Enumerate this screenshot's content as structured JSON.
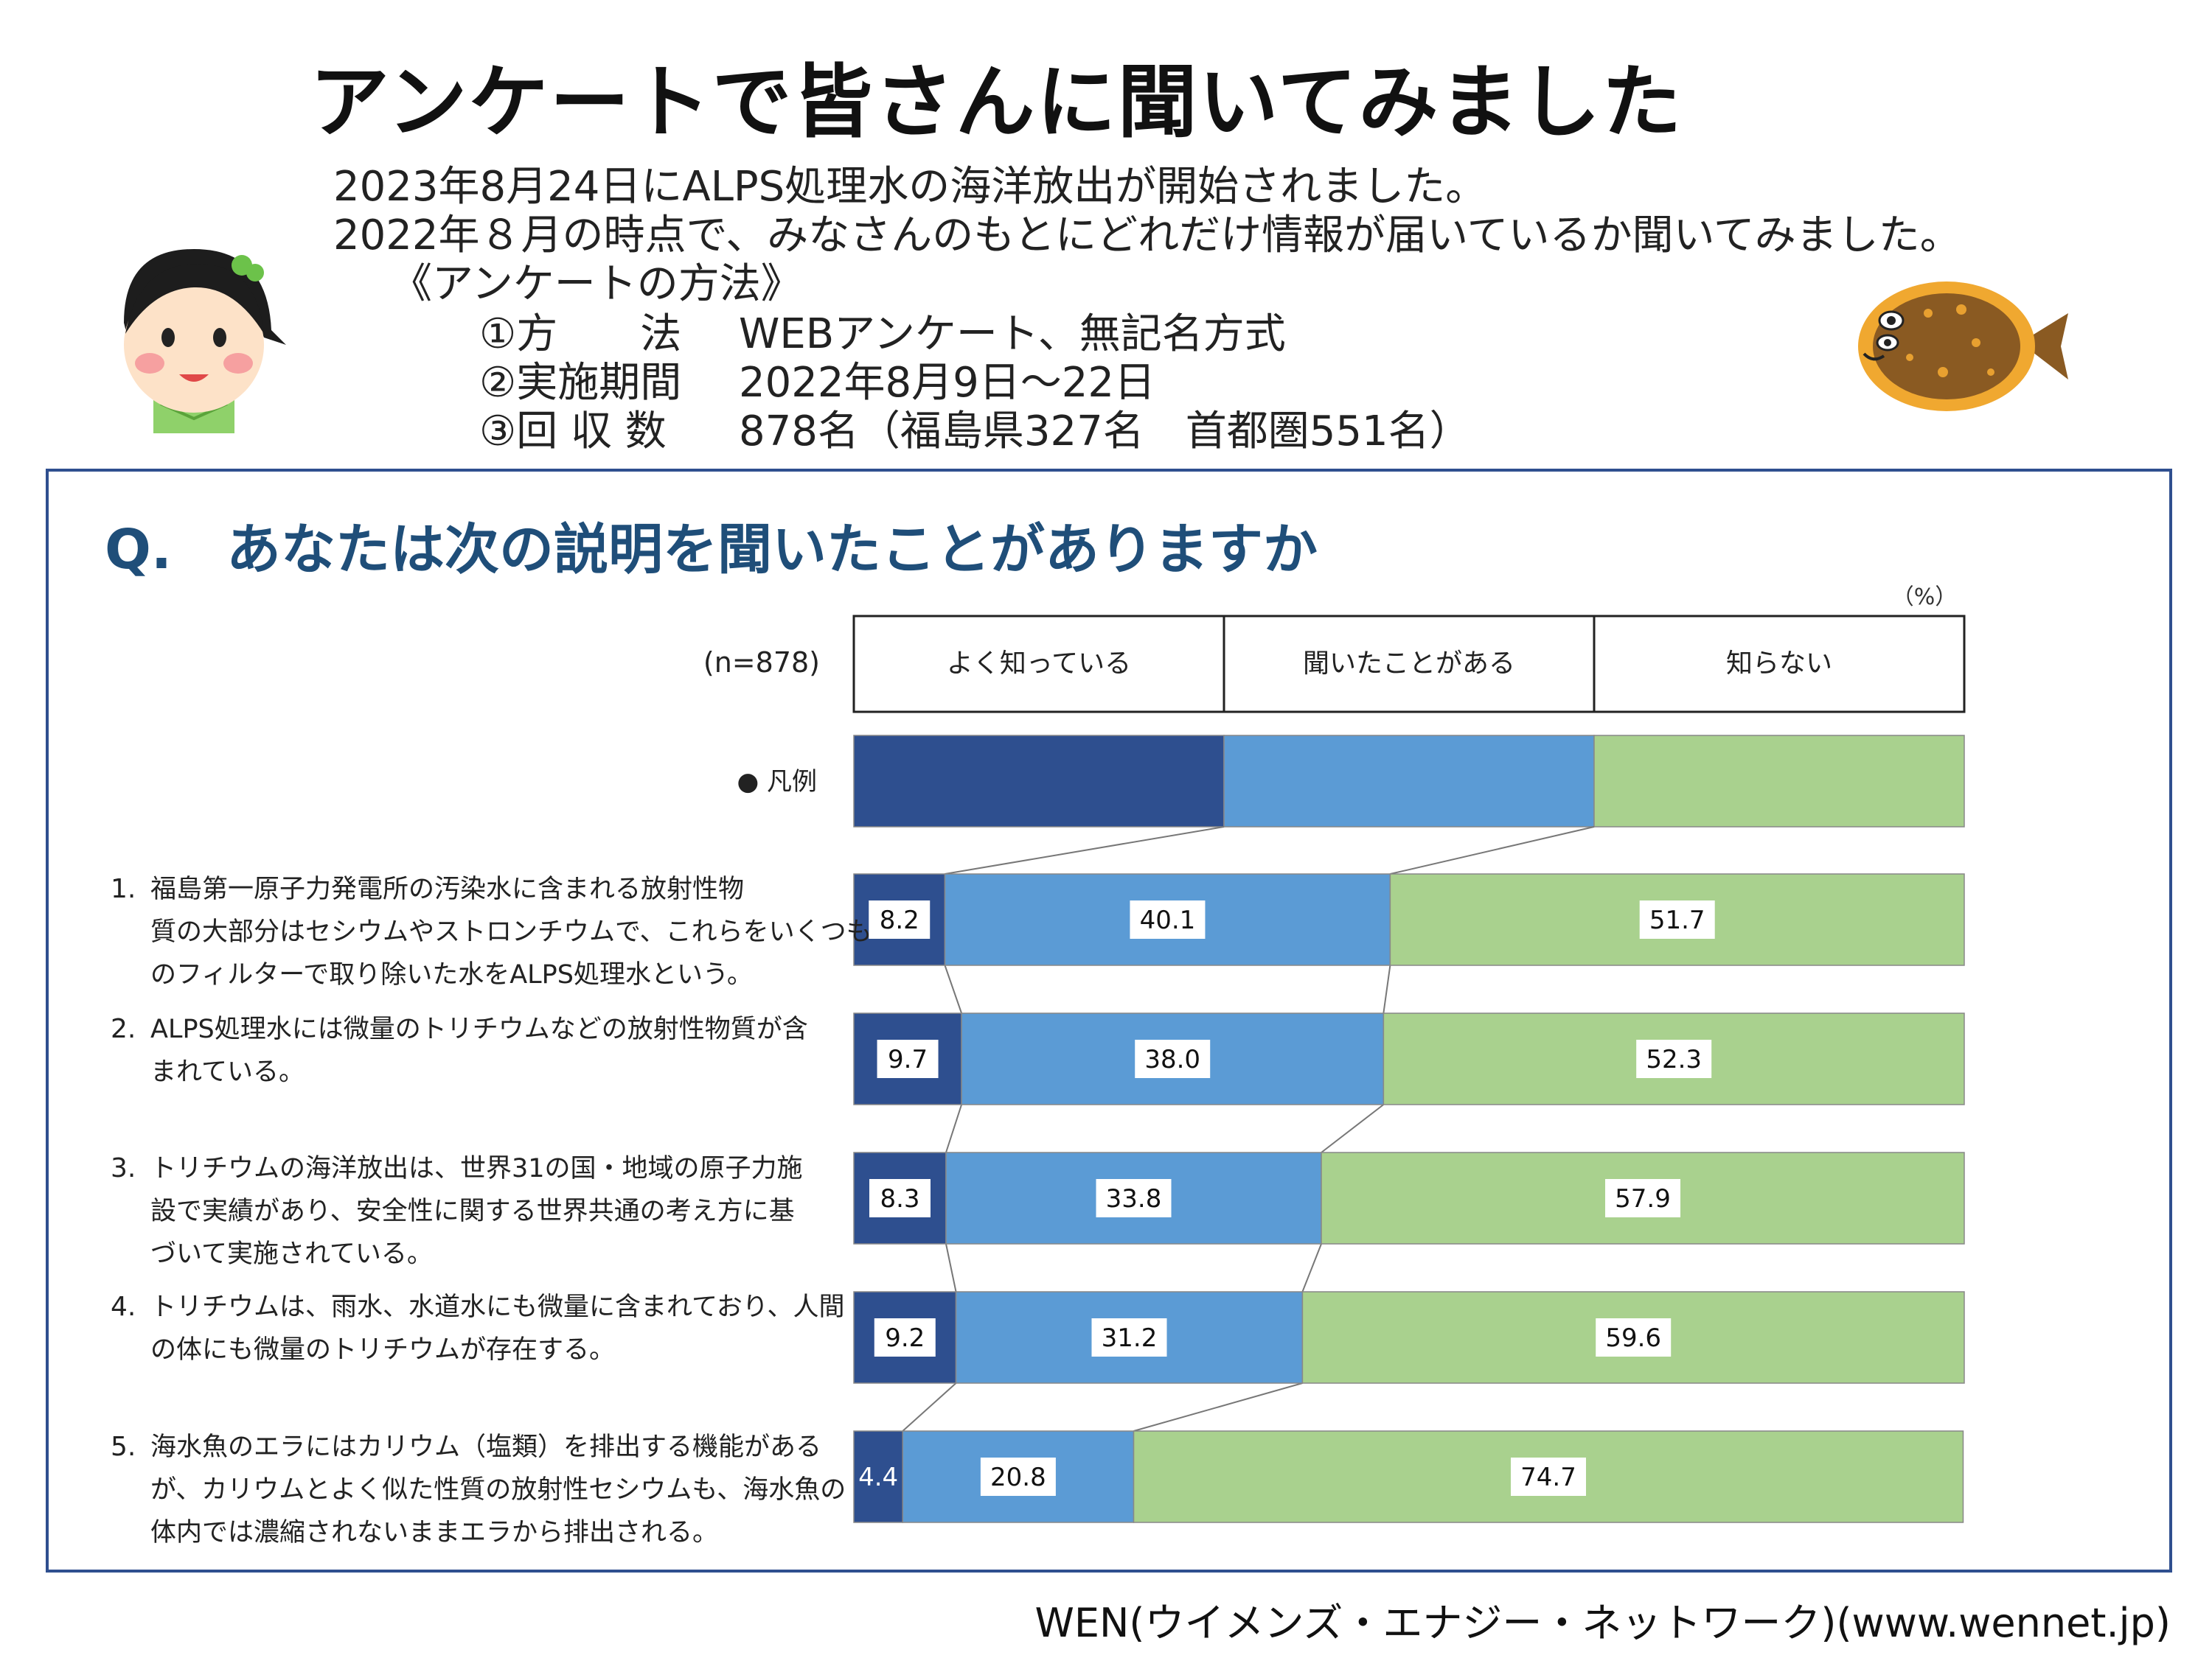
{
  "title": "アンケートで皆さんに聞いてみました",
  "intro": [
    "2023年8月24日にALPS処理水の海洋放出が開始されました。",
    "2022年８月の時点で、みなさんのもとにどれだけ情報が届いているか聞いてみました。"
  ],
  "method": {
    "heading": "《アンケートの方法》",
    "items": [
      {
        "label": "①方　　法",
        "value": "WEBアンケート、無記名方式"
      },
      {
        "label": "②実施期間",
        "value": "2022年8月9日～22日"
      },
      {
        "label": "③回 収 数",
        "value": "878名（福島県327名　首都圏551名）"
      }
    ]
  },
  "question": "Q.　あなたは次の説明を聞いたことがありますか",
  "footer": "WEN(ウイメンズ・エナジー・ネットワーク)(www.wennet.jp)",
  "colors": {
    "dark": "#2e4f8f",
    "mid": "#5b9bd5",
    "light": "#a9d18e",
    "title": "#1f4e79",
    "border": "#2f4f8f"
  },
  "icons": [
    "girl-illustration-icon",
    "flatfish-illustration-icon"
  ],
  "chart_data": {
    "type": "bar",
    "orientation": "horizontal",
    "stacked": true,
    "unit": "（%）",
    "n_label": "(n=878)",
    "legend_label": "● 凡例",
    "series_names": [
      "よく知っている",
      "聞いたことがある",
      "知らない"
    ],
    "categories": [
      {
        "num": "1.",
        "lines": [
          "福島第一原子力発電所の汚染水に含まれる放射性物",
          "質の大部分はセシウムやストロンチウムで、これらをいくつも",
          "のフィルターで取り除いた水をALPS処理水という。"
        ]
      },
      {
        "num": "2.",
        "lines": [
          "ALPS処理水には微量のトリチウムなどの放射性物質が含",
          "まれている。"
        ]
      },
      {
        "num": "3.",
        "lines": [
          "トリチウムの海洋放出は、世界31の国・地域の原子力施",
          "設で実績があり、安全性に関する世界共通の考え方に基",
          "づいて実施されている。"
        ]
      },
      {
        "num": "4.",
        "lines": [
          "トリチウムは、雨水、水道水にも微量に含まれており、人間",
          "の体にも微量のトリチウムが存在する。"
        ]
      },
      {
        "num": "5.",
        "lines": [
          "海水魚のエラにはカリウム（塩類）を排出する機能がある",
          "が、カリウムとよく似た性質の放射性セシウムも、海水魚の",
          "体内では濃縮されないままエラから排出される。"
        ]
      }
    ],
    "series": [
      {
        "name": "よく知っている",
        "values": [
          8.2,
          9.7,
          8.3,
          9.2,
          4.4
        ]
      },
      {
        "name": "聞いたことがある",
        "values": [
          40.1,
          38.0,
          33.8,
          31.2,
          20.8
        ]
      },
      {
        "name": "知らない",
        "values": [
          51.7,
          52.3,
          57.9,
          59.6,
          74.7
        ]
      }
    ],
    "value_labels": [
      [
        "8.2",
        "40.1",
        "51.7"
      ],
      [
        "9.7",
        "38.0",
        "52.3"
      ],
      [
        "8.3",
        "33.8",
        "57.9"
      ],
      [
        "9.2",
        "31.2",
        "59.6"
      ],
      [
        "4.4",
        "20.8",
        "74.7"
      ]
    ],
    "xlim": [
      0,
      100
    ],
    "grid": false
  }
}
